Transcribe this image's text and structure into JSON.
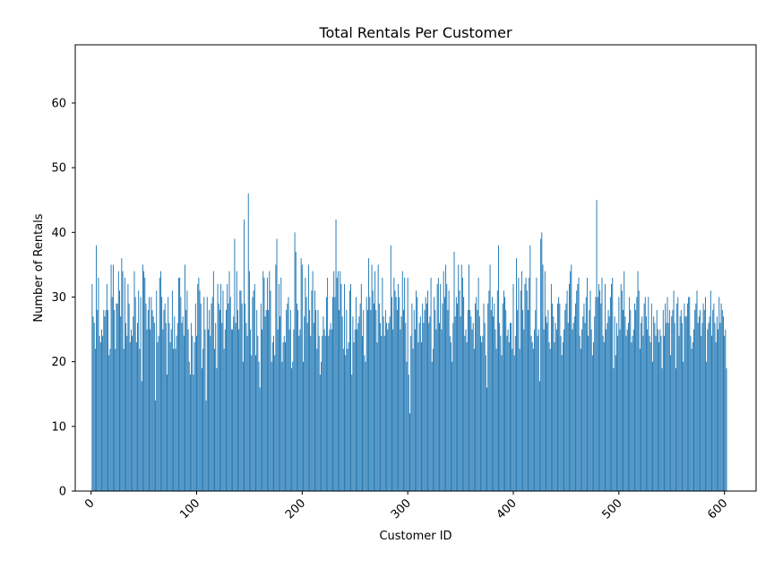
{
  "chart_data": {
    "type": "bar",
    "title": "Total Rentals Per Customer",
    "xlabel": "Customer ID",
    "ylabel": "Number of Rentals",
    "xlim": [
      -15,
      630
    ],
    "ylim": [
      0,
      69
    ],
    "x_ticks": [
      0,
      100,
      200,
      300,
      400,
      500,
      600
    ],
    "y_ticks": [
      0,
      10,
      20,
      30,
      40,
      50,
      60
    ],
    "x_tick_rotation_deg": 45,
    "bar_color": "#1f77b4",
    "grid": false,
    "legend": "none",
    "series": [
      {
        "x_start": 1,
        "values": [
          32,
          27,
          26,
          22,
          38,
          28,
          33,
          24,
          23,
          25,
          24,
          28,
          27,
          28,
          32,
          28,
          21,
          22,
          35,
          30,
          35,
          28,
          22,
          29,
          29,
          34,
          31,
          27,
          36,
          34,
          22,
          33,
          26,
          24,
          32,
          29,
          23,
          25,
          24,
          27,
          34,
          30,
          23,
          26,
          31,
          22,
          30,
          17,
          35,
          34,
          33,
          29,
          25,
          28,
          30,
          25,
          30,
          28,
          27,
          26,
          14,
          31,
          23,
          24,
          33,
          34,
          30,
          25,
          28,
          29,
          26,
          18,
          30,
          26,
          23,
          25,
          31,
          22,
          27,
          22,
          24,
          26,
          33,
          33,
          30,
          26,
          27,
          24,
          35,
          28,
          31,
          25,
          20,
          18,
          26,
          24,
          18,
          23,
          29,
          24,
          32,
          33,
          31,
          29,
          19,
          22,
          30,
          25,
          14,
          30,
          25,
          28,
          24,
          29,
          30,
          34,
          22,
          26,
          19,
          32,
          29,
          28,
          32,
          26,
          31,
          22,
          25,
          28,
          32,
          29,
          34,
          30,
          25,
          25,
          27,
          39,
          26,
          34,
          28,
          25,
          31,
          31,
          29,
          20,
          42,
          29,
          26,
          24,
          46,
          34,
          25,
          21,
          30,
          31,
          32,
          21,
          28,
          24,
          20,
          16,
          29,
          25,
          34,
          33,
          27,
          28,
          33,
          28,
          34,
          31,
          20,
          23,
          24,
          21,
          35,
          39,
          25,
          32,
          27,
          33,
          20,
          23,
          24,
          23,
          28,
          29,
          30,
          25,
          28,
          19,
          20,
          25,
          40,
          37,
          29,
          28,
          24,
          25,
          36,
          35,
          20,
          27,
          33,
          30,
          26,
          35,
          28,
          24,
          31,
          34,
          26,
          31,
          28,
          22,
          28,
          24,
          18,
          20,
          24,
          27,
          25,
          24,
          30,
          33,
          24,
          25,
          26,
          25,
          30,
          34,
          30,
          42,
          33,
          34,
          28,
          34,
          32,
          27,
          22,
          32,
          21,
          28,
          22,
          23,
          31,
          32,
          18,
          27,
          23,
          25,
          30,
          25,
          26,
          27,
          29,
          32,
          24,
          28,
          21,
          20,
          30,
          28,
          36,
          30,
          28,
          35,
          31,
          29,
          34,
          28,
          23,
          35,
          29,
          26,
          24,
          33,
          27,
          24,
          28,
          26,
          25,
          26,
          27,
          38,
          30,
          25,
          33,
          31,
          30,
          28,
          32,
          30,
          25,
          27,
          34,
          28,
          33,
          26,
          20,
          33,
          18,
          12,
          24,
          29,
          22,
          28,
          25,
          31,
          30,
          23,
          26,
          27,
          23,
          29,
          26,
          28,
          30,
          29,
          31,
          26,
          27,
          33,
          20,
          22,
          30,
          28,
          25,
          32,
          33,
          26,
          32,
          25,
          29,
          34,
          30,
          35,
          32,
          28,
          31,
          24,
          23,
          20,
          26,
          37,
          27,
          30,
          29,
          35,
          31,
          27,
          35,
          33,
          30,
          24,
          25,
          23,
          28,
          35,
          28,
          27,
          25,
          26,
          22,
          29,
          30,
          28,
          33,
          27,
          24,
          23,
          24,
          29,
          26,
          21,
          16,
          29,
          31,
          35,
          28,
          30,
          27,
          29,
          25,
          22,
          31,
          38,
          26,
          24,
          21,
          29,
          31,
          30,
          28,
          24,
          25,
          23,
          26,
          26,
          22,
          32,
          21,
          24,
          36,
          28,
          33,
          22,
          31,
          34,
          28,
          25,
          32,
          33,
          31,
          28,
          33,
          38,
          24,
          23,
          22,
          25,
          28,
          33,
          24,
          25,
          17,
          39,
          40,
          35,
          25,
          34,
          27,
          26,
          28,
          23,
          22,
          32,
          29,
          27,
          23,
          26,
          25,
          29,
          30,
          29,
          24,
          21,
          23,
          25,
          28,
          29,
          31,
          26,
          32,
          34,
          35,
          25,
          26,
          27,
          29,
          31,
          32,
          33,
          24,
          22,
          25,
          27,
          29,
          26,
          30,
          33,
          24,
          28,
          31,
          25,
          21,
          23,
          27,
          30,
          45,
          30,
          32,
          31,
          29,
          33,
          24,
          23,
          32,
          25,
          26,
          28,
          27,
          30,
          32,
          33,
          19,
          27,
          21,
          26,
          24,
          30,
          25,
          32,
          31,
          28,
          34,
          27,
          24,
          25,
          26,
          30,
          28,
          23,
          24,
          25,
          29,
          28,
          30,
          34,
          31,
          22,
          26,
          27,
          24,
          29,
          30,
          27,
          25,
          30,
          24,
          23,
          29,
          20,
          27,
          26,
          24,
          28,
          25,
          23,
          25,
          24,
          19,
          28,
          24,
          29,
          26,
          30,
          26,
          28,
          21,
          27,
          28,
          31,
          26,
          19,
          29,
          30,
          24,
          27,
          28,
          26,
          20,
          29,
          27,
          27,
          29,
          30,
          30,
          24,
          22,
          23,
          25,
          28,
          29,
          31,
          26,
          27,
          28,
          24,
          26,
          29,
          28,
          30,
          20,
          25,
          26,
          27,
          31,
          24,
          28,
          29,
          26,
          23,
          27,
          25,
          30,
          26,
          29,
          28,
          27,
          24,
          25,
          19
        ]
      }
    ]
  }
}
